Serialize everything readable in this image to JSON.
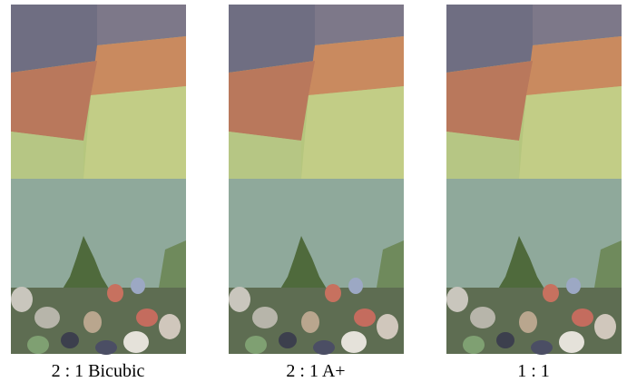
{
  "panels": [
    {
      "caption": "2 : 1 Bicubic"
    },
    {
      "caption": "2 : 1 A+"
    },
    {
      "caption": "1 : 1"
    }
  ]
}
